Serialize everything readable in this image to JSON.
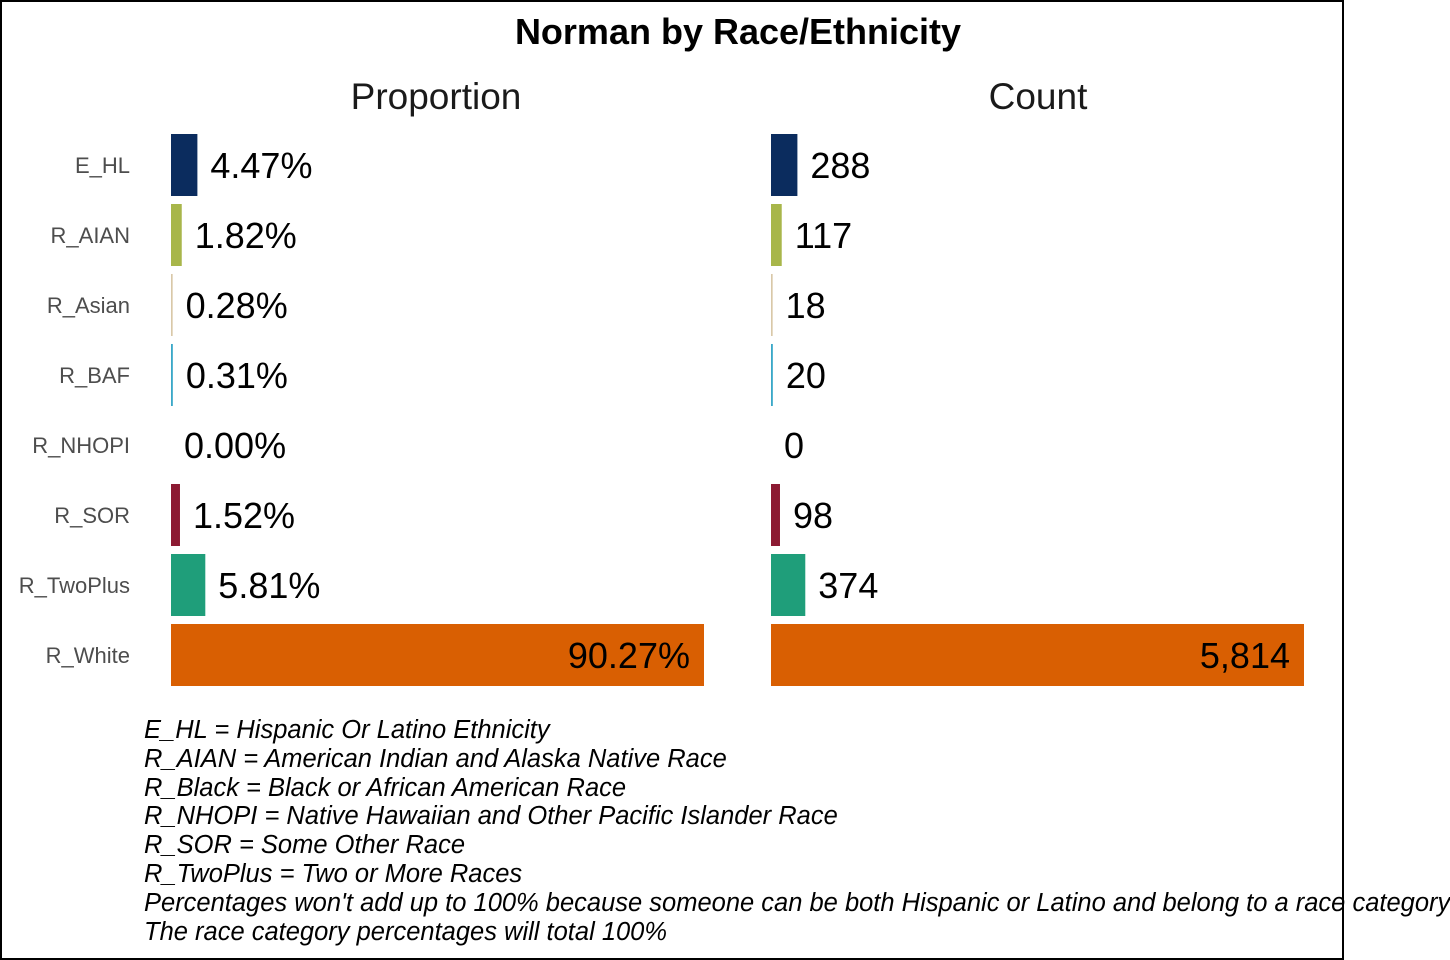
{
  "chart_data": {
    "type": "bar",
    "title": "Norman by Race/Ethnicity",
    "categories": [
      "E_HL",
      "R_AIAN",
      "R_Asian",
      "R_BAF",
      "R_NHOPI",
      "R_SOR",
      "R_TwoPlus",
      "R_White"
    ],
    "colors": [
      "#0b2c5e",
      "#a8b64a",
      "#d9c8a8",
      "#3aa8c8",
      "#7a4a9a",
      "#8c1a32",
      "#1f9e7a",
      "#d95f02"
    ],
    "panels": [
      {
        "name": "Proportion",
        "values": [
          4.47,
          1.82,
          0.28,
          0.31,
          0.0,
          1.52,
          5.81,
          90.27
        ],
        "labels": [
          "4.47%",
          "1.82%",
          "0.28%",
          "0.31%",
          "0.00%",
          "1.52%",
          "5.81%",
          "90.27%"
        ],
        "max": 90.27
      },
      {
        "name": "Count",
        "values": [
          288,
          117,
          18,
          20,
          0,
          98,
          374,
          5814
        ],
        "labels": [
          "288",
          "117",
          "18",
          "20",
          "0",
          "98",
          "374",
          "5,814"
        ],
        "max": 5814
      }
    ],
    "notes": [
      "E_HL = Hispanic Or Latino Ethnicity",
      "R_AIAN = American Indian and Alaska Native Race",
      "R_Black = Black or African American Race",
      "R_NHOPI = Native Hawaiian and Other Pacific Islander Race",
      "R_SOR = Some Other Race",
      "R_TwoPlus = Two or More Races",
      "Percentages won't add up to 100% because someone can be both Hispanic or Latino and belong to a race category",
      "The race category percentages will total 100%"
    ],
    "grid": false,
    "legend": "none"
  }
}
